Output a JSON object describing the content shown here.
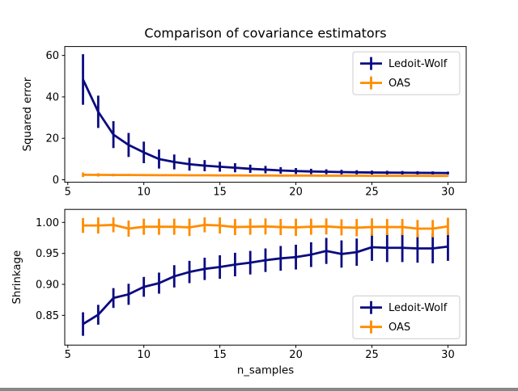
{
  "figure_title": "Comparison of covariance estimators",
  "colors": {
    "ledoit_wolf": "#0b0b80",
    "oas": "#ff8c00",
    "spine": "#000000",
    "legend_border": "#cccccc",
    "legend_bg": "#ffffff",
    "background": "#ffffff",
    "text": "#000000"
  },
  "legend": {
    "labels": [
      "Ledoit-Wolf",
      "OAS"
    ]
  },
  "chart_data": [
    {
      "type": "line",
      "title": "Comparison of covariance estimators",
      "xlabel": "",
      "ylabel": "Squared error",
      "xlim": [
        4.8,
        31.2
      ],
      "ylim": [
        -1.2,
        64.3
      ],
      "xticks": [
        5,
        10,
        15,
        20,
        25,
        30
      ],
      "xticklabels": [
        "5",
        "10",
        "15",
        "20",
        "25",
        "30"
      ],
      "yticks": [
        0,
        20,
        40,
        60
      ],
      "yticklabels": [
        "0",
        "20",
        "40",
        "60"
      ],
      "grid": false,
      "legend_position": "upper right",
      "x": [
        6,
        7,
        8,
        9,
        10,
        11,
        12,
        13,
        14,
        15,
        16,
        17,
        18,
        19,
        20,
        21,
        22,
        23,
        24,
        25,
        26,
        27,
        28,
        29,
        30
      ],
      "series": [
        {
          "name": "Ledoit-Wolf",
          "color": "#0b0b80",
          "values": [
            48.4,
            32.8,
            21.8,
            16.8,
            13.2,
            10.0,
            8.6,
            7.5,
            6.8,
            6.3,
            5.8,
            5.3,
            4.9,
            4.5,
            4.2,
            4.0,
            3.85,
            3.7,
            3.6,
            3.5,
            3.45,
            3.4,
            3.35,
            3.3,
            3.25
          ],
          "errors": [
            12.2,
            7.8,
            6.5,
            5.8,
            5.2,
            4.6,
            3.6,
            3.1,
            2.7,
            2.4,
            2.2,
            2.0,
            1.8,
            1.6,
            1.45,
            1.3,
            1.2,
            1.1,
            1.0,
            0.95,
            0.9,
            0.85,
            0.8,
            0.75,
            0.7
          ]
        },
        {
          "name": "OAS",
          "color": "#ff8c00",
          "values": [
            2.4,
            2.35,
            2.3,
            2.3,
            2.25,
            2.2,
            2.2,
            2.15,
            2.15,
            2.1,
            2.1,
            2.05,
            2.05,
            2.0,
            2.0,
            2.0,
            1.95,
            1.95,
            1.95,
            1.9,
            1.9,
            1.9,
            1.9,
            1.85,
            1.85
          ],
          "errors": [
            1.1,
            0.8,
            0.65,
            0.55,
            0.5,
            0.45,
            0.42,
            0.4,
            0.38,
            0.36,
            0.34,
            0.32,
            0.31,
            0.3,
            0.29,
            0.28,
            0.27,
            0.27,
            0.26,
            0.26,
            0.25,
            0.25,
            0.25,
            0.24,
            0.24
          ]
        }
      ]
    },
    {
      "type": "line",
      "title": "",
      "xlabel": "n_samples",
      "ylabel": "Shrinkage",
      "xlim": [
        4.8,
        31.2
      ],
      "ylim": [
        0.802,
        1.021
      ],
      "xticks": [
        5,
        10,
        15,
        20,
        25,
        30
      ],
      "xticklabels": [
        "5",
        "10",
        "15",
        "20",
        "25",
        "30"
      ],
      "yticks": [
        0.85,
        0.9,
        0.95,
        1.0
      ],
      "yticklabels": [
        "0.85",
        "0.90",
        "0.95",
        "1.00"
      ],
      "grid": false,
      "legend_position": "lower right",
      "x": [
        6,
        7,
        8,
        9,
        10,
        11,
        12,
        13,
        14,
        15,
        16,
        17,
        18,
        19,
        20,
        21,
        22,
        23,
        24,
        25,
        26,
        27,
        28,
        29,
        30
      ],
      "series": [
        {
          "name": "Ledoit-Wolf",
          "color": "#0b0b80",
          "values": [
            0.836,
            0.851,
            0.878,
            0.884,
            0.896,
            0.902,
            0.913,
            0.92,
            0.925,
            0.928,
            0.932,
            0.935,
            0.939,
            0.942,
            0.944,
            0.948,
            0.954,
            0.949,
            0.952,
            0.96,
            0.959,
            0.959,
            0.958,
            0.958,
            0.961
          ],
          "errors": [
            0.019,
            0.016,
            0.016,
            0.017,
            0.016,
            0.017,
            0.018,
            0.018,
            0.018,
            0.019,
            0.019,
            0.019,
            0.019,
            0.02,
            0.02,
            0.02,
            0.021,
            0.022,
            0.022,
            0.022,
            0.023,
            0.023,
            0.023,
            0.024,
            0.023
          ]
        },
        {
          "name": "OAS",
          "color": "#ff8c00",
          "values": [
            0.995,
            0.995,
            0.996,
            0.99,
            0.993,
            0.993,
            0.993,
            0.992,
            0.996,
            0.995,
            0.9925,
            0.993,
            0.9935,
            0.9925,
            0.992,
            0.993,
            0.9935,
            0.992,
            0.9915,
            0.9925,
            0.9925,
            0.9925,
            0.99,
            0.99,
            0.9935
          ],
          "errors": [
            0.012,
            0.013,
            0.012,
            0.013,
            0.013,
            0.013,
            0.013,
            0.014,
            0.012,
            0.013,
            0.013,
            0.013,
            0.013,
            0.013,
            0.014,
            0.013,
            0.013,
            0.013,
            0.014,
            0.014,
            0.013,
            0.013,
            0.014,
            0.014,
            0.014
          ]
        }
      ]
    }
  ]
}
